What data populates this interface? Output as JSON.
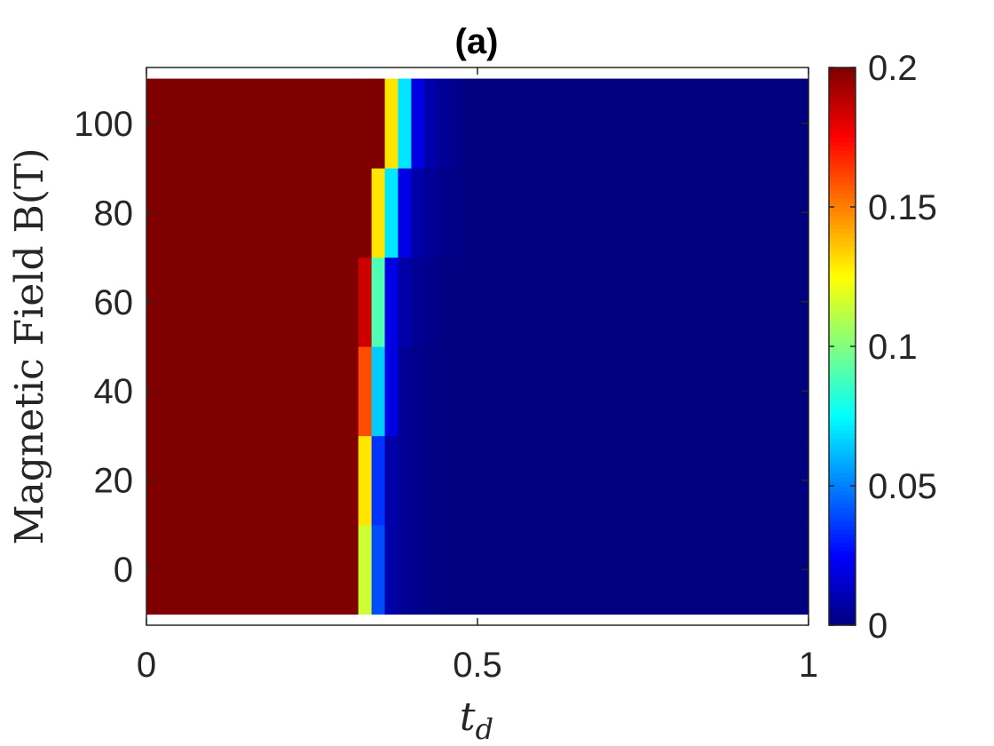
{
  "chart_data": {
    "type": "heatmap",
    "title": "(a)",
    "xlabel": "t_d",
    "ylabel": "Magnetic Field B(T)",
    "xlim": [
      0,
      1
    ],
    "ylim": [
      -12.5,
      112.5
    ],
    "x_ticks": [
      0,
      0.5,
      1
    ],
    "x_tick_labels": [
      "0",
      "0.5",
      "1"
    ],
    "y_ticks": [
      0,
      20,
      40,
      60,
      80,
      100
    ],
    "y_tick_labels": [
      "0",
      "20",
      "40",
      "60",
      "80",
      "100"
    ],
    "colorbar": {
      "colormap": "jet",
      "clim": [
        0,
        0.2
      ],
      "ticks": [
        0,
        0.05,
        0.1,
        0.15,
        0.2
      ],
      "tick_labels": [
        "0",
        "0.05",
        "0.1",
        "0.15",
        "0.2"
      ]
    },
    "grid": false,
    "x_edges": [
      0,
      0.32,
      0.34,
      0.36,
      0.38,
      0.4,
      0.42,
      0.44,
      0.46,
      0.48,
      1.0
    ],
    "rows": [
      {
        "B": 0,
        "values": [
          0.2,
          0.115,
          0.04,
          0.008,
          0.004,
          0.002,
          0.001,
          0,
          0,
          0
        ]
      },
      {
        "B": 20,
        "values": [
          0.2,
          0.13,
          0.035,
          0.008,
          0.004,
          0.002,
          0.001,
          0,
          0,
          0
        ]
      },
      {
        "B": 40,
        "values": [
          0.2,
          0.16,
          0.065,
          0.02,
          0.004,
          0.002,
          0.001,
          0,
          0,
          0
        ]
      },
      {
        "B": 60,
        "values": [
          0.2,
          0.185,
          0.09,
          0.02,
          0.008,
          0.004,
          0.002,
          0,
          0,
          0
        ]
      },
      {
        "B": 80,
        "values": [
          0.2,
          0.2,
          0.13,
          0.07,
          0.02,
          0.008,
          0.004,
          0.002,
          0.001,
          0
        ]
      },
      {
        "B": 100,
        "values": [
          0.2,
          0.2,
          0.2,
          0.13,
          0.07,
          0.02,
          0.008,
          0.004,
          0.002,
          0
        ]
      }
    ]
  }
}
